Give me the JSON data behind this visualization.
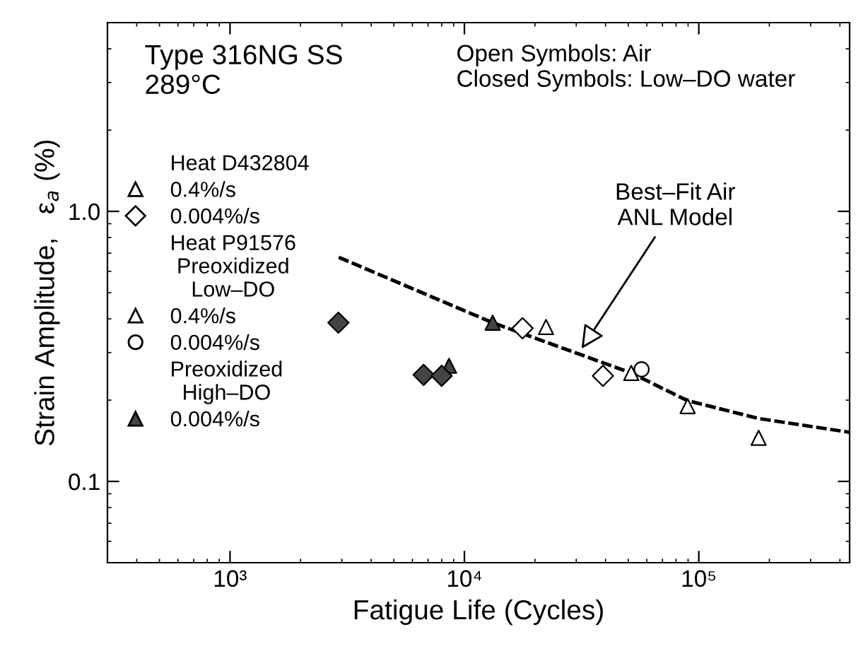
{
  "chart_data": {
    "type": "scatter",
    "xlabel": "Fatigue Life (Cycles)",
    "ylabel": "Strain Amplitude,   ε$_{a}$ (%)",
    "log": "xy",
    "xlim": [
      300,
      440000
    ],
    "ylim": [
      0.05,
      5
    ],
    "xticks": [
      {
        "value": 1000,
        "label": "10³"
      },
      {
        "value": 10000,
        "label": "10⁴"
      },
      {
        "value": 100000,
        "label": "10⁵"
      }
    ],
    "yticks": [
      {
        "value": 0.1,
        "label": "0.1"
      },
      {
        "value": 1,
        "label": "1.0"
      }
    ],
    "grid": false,
    "legend": "left",
    "series": [
      {
        "name": "0.4%/s",
        "color": "#ffffff",
        "marker": "triangle",
        "x": [
          22300,
          89600,
          180000
        ],
        "values": [
          0.373,
          0.19,
          0.145
        ]
      },
      {
        "name": "0.004%/s",
        "color": "#ffffff",
        "marker": "diamond",
        "x": [
          17700,
          39000
        ],
        "values": [
          0.369,
          0.246
        ]
      },
      {
        "name": "0.4%/s",
        "color": "#ffffff",
        "marker": "triangle",
        "x": [
          51500
        ],
        "values": [
          0.252
        ]
      },
      {
        "name": "0.004%/s",
        "color": "#ffffff",
        "marker": "circle",
        "x": [
          57000
        ],
        "values": [
          0.26
        ]
      },
      {
        "name": "0.004%/s",
        "color": "#444444",
        "marker": "triangle",
        "x": [
          8600
        ],
        "values": [
          0.268
        ]
      },
      {
        "color": "#444444",
        "marker": "triangle",
        "x": [
          13200
        ],
        "values": [
          0.387
        ]
      },
      {
        "color": "#444444",
        "marker": "diamond",
        "x": [
          2900,
          6700,
          8000
        ],
        "values": [
          0.387,
          0.248,
          0.246
        ]
      },
      {
        "type": "line",
        "color": "#000000",
        "line_style": "dashed",
        "marker": "none",
        "x": [
          2910,
          13200,
          51500,
          89600,
          180000,
          440000
        ],
        "values": [
          0.676,
          0.387,
          0.252,
          0.199,
          0.171,
          0.152
        ]
      }
    ],
    "annotations": [
      "Heat D432804",
      "Heat P91576\nPreoxidized\nLow–DO",
      "Preoxidized\nHigh–DO",
      "Type 316NG SS\n289°C",
      "Open Symbols: Air\nClosed Symbols: Low–DO water",
      {
        "text": "Best–Fit Air\nANL Model",
        "x": 31600,
        "y": 0.31
      }
    ]
  }
}
